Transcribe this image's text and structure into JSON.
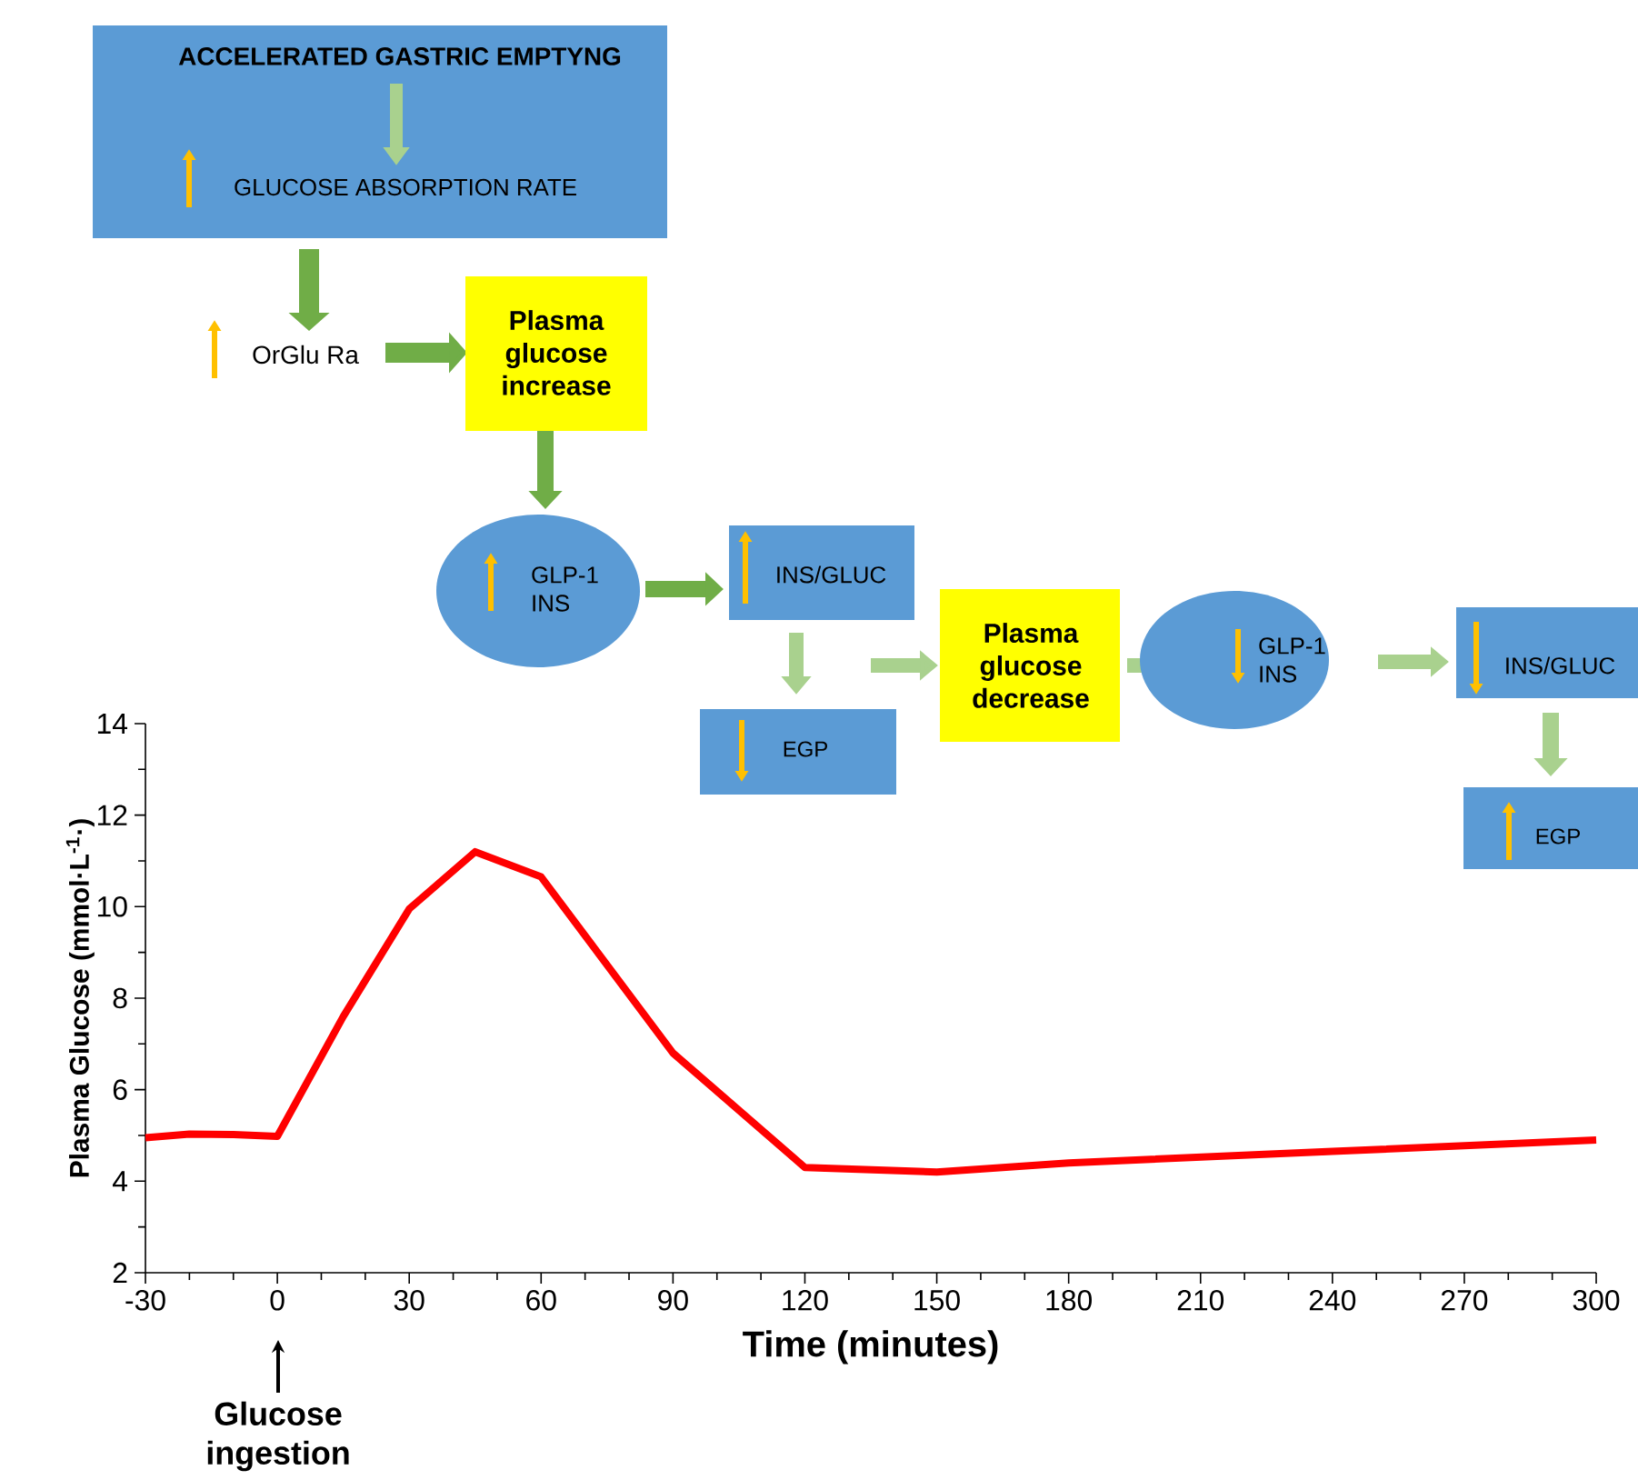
{
  "chart_data": {
    "type": "line",
    "x": [
      -30,
      -20,
      -10,
      0,
      15,
      30,
      45,
      60,
      90,
      120,
      150,
      180,
      240,
      300
    ],
    "series": [
      {
        "color": "#ff0000",
        "values": [
          4.95,
          5.03,
          5.02,
          4.98,
          7.6,
          9.95,
          11.2,
          10.65,
          6.8,
          4.3,
          4.2,
          4.4,
          4.65,
          4.9
        ]
      }
    ],
    "xlim": [
      -30,
      300
    ],
    "ylim": [
      2,
      14
    ],
    "xticks": [
      -30,
      0,
      30,
      60,
      90,
      120,
      150,
      180,
      210,
      240,
      270,
      300
    ],
    "yticks": [
      2,
      4,
      6,
      8,
      10,
      12,
      14
    ],
    "xlabel": "Time (minutes)",
    "ylabel": "Plasma Glucose (mmol·L$^{-1}$·)",
    "annotations": [
      "ACCELERATED GASTRIC EMPTYNG",
      "GLUCOSE ABSORPTION RATE",
      "OrGlu Ra",
      "Plasma glucose increase",
      "GLP-1 INS",
      "INS/GLUC",
      "EGP",
      "Plasma glucose decrease",
      "GLP-1 INS",
      "INS/GLUC",
      "EGP",
      "Glucose ingestion"
    ]
  }
}
